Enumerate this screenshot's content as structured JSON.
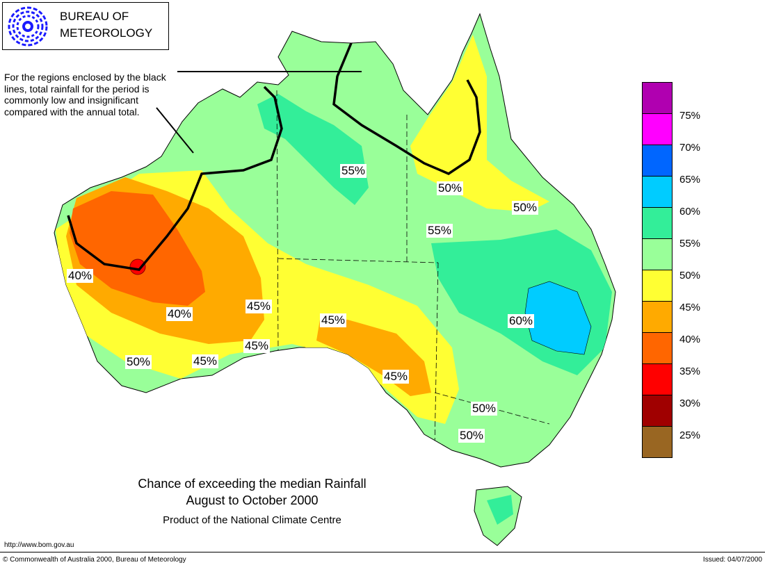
{
  "logo": {
    "line1": "BUREAU OF",
    "line2": "METEOROLOGY"
  },
  "note": "For the regions enclosed by the black lines, total rainfall for the period is commonly low and insignificant compared with the annual total.",
  "map_labels": [
    {
      "id": "55-north",
      "text": "55%"
    },
    {
      "id": "50-gulf",
      "text": "50%"
    },
    {
      "id": "50-qld",
      "text": "50%"
    },
    {
      "id": "55-centre",
      "text": "55%"
    },
    {
      "id": "40-wa-coast",
      "text": "40%"
    },
    {
      "id": "40-wa-inland",
      "text": "40%"
    },
    {
      "id": "45-wa-east",
      "text": "45%"
    },
    {
      "id": "45-sa",
      "text": "45%"
    },
    {
      "id": "60-nsw",
      "text": "60%"
    },
    {
      "id": "45-bight",
      "text": "45%"
    },
    {
      "id": "50-sw",
      "text": "50%"
    },
    {
      "id": "45-south",
      "text": "45%"
    },
    {
      "id": "45-gulfs",
      "text": "45%"
    },
    {
      "id": "50-vic-north",
      "text": "50%"
    },
    {
      "id": "50-vic",
      "text": "50%"
    }
  ],
  "legend": [
    {
      "label": "75%",
      "color": "#b000b0"
    },
    {
      "label": "70%",
      "color": "#ff00ff"
    },
    {
      "label": "65%",
      "color": "#0066ff"
    },
    {
      "label": "60%",
      "color": "#00ccff"
    },
    {
      "label": "55%",
      "color": "#33ee99"
    },
    {
      "label": "50%",
      "color": "#99ff99"
    },
    {
      "label": "45%",
      "color": "#ffff33"
    },
    {
      "label": "40%",
      "color": "#ffaa00"
    },
    {
      "label": "35%",
      "color": "#ff6600"
    },
    {
      "label": "30%",
      "color": "#ff0000"
    },
    {
      "label": "25%",
      "color": "#a00000"
    },
    {
      "label": "",
      "color": "#996622"
    }
  ],
  "title_line1": "Chance of exceeding the median Rainfall",
  "title_line2": "August to October 2000",
  "subtitle": "Product of the National Climate Centre",
  "url": "http://www.bom.gov.au",
  "copyright": "© Commonwealth of Australia 2000, Bureau of Meteorology",
  "issued": "Issued: 04/07/2000"
}
